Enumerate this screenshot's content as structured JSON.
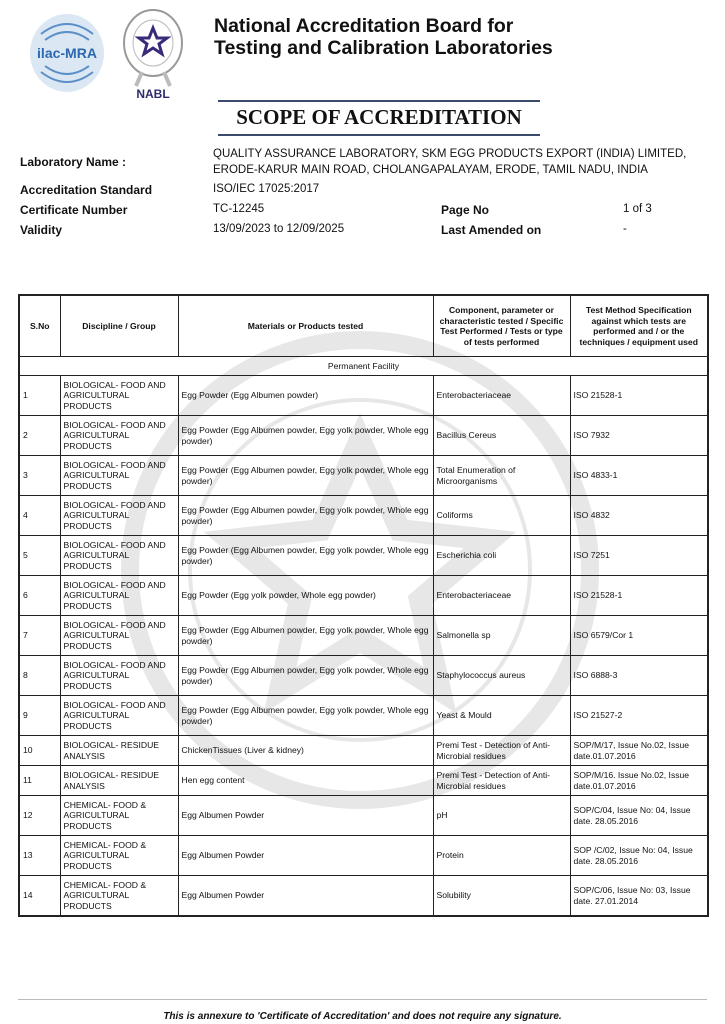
{
  "logos": {
    "ilac": "ilac-MRA",
    "nabl": "NABL"
  },
  "header": {
    "org_line1": "National Accreditation Board for",
    "org_line2": "Testing and Calibration Laboratories",
    "title": "SCOPE OF ACCREDITATION"
  },
  "info": {
    "lab_name_label": "Laboratory Name :",
    "lab_name_line1": "QUALITY ASSURANCE LABORATORY, SKM EGG PRODUCTS EXPORT (INDIA) LIMITED,",
    "lab_name_line2": "ERODE-KARUR MAIN ROAD, CHOLANGAPALAYAM, ERODE, TAMIL NADU, INDIA",
    "standard_label": "Accreditation Standard",
    "standard": "ISO/IEC 17025:2017",
    "cert_label": "Certificate Number",
    "cert": "TC-12245",
    "page_label": "Page No",
    "page": "1 of 3",
    "validity_label": "Validity",
    "validity": "13/09/2023 to 12/09/2025",
    "amended_label": "Last Amended on",
    "amended": "-"
  },
  "table": {
    "headers": [
      "S.No",
      "Discipline / Group",
      "Materials or Products tested",
      "Component, parameter or characteristic tested / Specific Test Performed / Tests or type of tests performed",
      "Test Method Specification against which tests are performed and / or the techniques / equipment used"
    ],
    "section": "Permanent Facility",
    "rows": [
      [
        "1",
        "BIOLOGICAL- FOOD AND AGRICULTURAL PRODUCTS",
        "Egg Powder (Egg Albumen powder)",
        "Enterobacteriaceae",
        "ISO 21528-1"
      ],
      [
        "2",
        "BIOLOGICAL- FOOD AND AGRICULTURAL PRODUCTS",
        "Egg Powder (Egg Albumen powder, Egg yolk powder, Whole egg powder)",
        "Bacillus Cereus",
        "ISO 7932"
      ],
      [
        "3",
        "BIOLOGICAL- FOOD AND AGRICULTURAL PRODUCTS",
        "Egg Powder (Egg Albumen powder, Egg yolk powder, Whole egg powder)",
        "Total Enumeration of Microorganisms",
        "ISO 4833-1"
      ],
      [
        "4",
        "BIOLOGICAL- FOOD AND AGRICULTURAL PRODUCTS",
        "Egg Powder (Egg Albumen powder, Egg yolk powder, Whole egg powder)",
        "Coliforms",
        "ISO 4832"
      ],
      [
        "5",
        "BIOLOGICAL- FOOD AND AGRICULTURAL PRODUCTS",
        "Egg Powder (Egg Albumen powder, Egg yolk powder, Whole egg powder)",
        "Escherichia coli",
        "ISO 7251"
      ],
      [
        "6",
        "BIOLOGICAL- FOOD AND AGRICULTURAL PRODUCTS",
        "Egg Powder (Egg yolk powder, Whole egg powder)",
        "Enterobacteriaceae",
        "ISO 21528-1"
      ],
      [
        "7",
        "BIOLOGICAL- FOOD AND AGRICULTURAL PRODUCTS",
        "Egg Powder (Egg Albumen powder, Egg yolk powder, Whole egg powder)",
        "Salmonella sp",
        "ISO 6579/Cor 1"
      ],
      [
        "8",
        "BIOLOGICAL- FOOD AND AGRICULTURAL PRODUCTS",
        "Egg Powder (Egg Albumen powder, Egg yolk powder, Whole egg powder)",
        "Staphylococcus aureus",
        "ISO 6888-3"
      ],
      [
        "9",
        "BIOLOGICAL- FOOD AND AGRICULTURAL PRODUCTS",
        "Egg Powder (Egg Albumen powder, Egg yolk powder, Whole egg powder)",
        "Yeast & Mould",
        "ISO 21527-2"
      ],
      [
        "10",
        "BIOLOGICAL- RESIDUE ANALYSIS",
        "ChickenTissues (Liver & kidney)",
        "Premi Test - Detection of Anti-Microbial residues",
        "SOP/M/17, Issue No.02, Issue date.01.07.2016"
      ],
      [
        "11",
        "BIOLOGICAL- RESIDUE ANALYSIS",
        "Hen egg content",
        "Premi Test - Detection of Anti-Microbial residues",
        "SOP/M/16. Issue No.02, Issue date.01.07.2016"
      ],
      [
        "12",
        "CHEMICAL- FOOD & AGRICULTURAL PRODUCTS",
        "Egg Albumen Powder",
        "pH",
        "SOP/C/04, Issue No: 04, Issue date. 28.05.2016"
      ],
      [
        "13",
        "CHEMICAL- FOOD & AGRICULTURAL PRODUCTS",
        "Egg Albumen Powder",
        "Protein",
        "SOP /C/02, Issue No: 04, Issue date. 28.05.2016"
      ],
      [
        "14",
        "CHEMICAL- FOOD & AGRICULTURAL PRODUCTS",
        "Egg Albumen Powder",
        "Solubility",
        "SOP/C/06, Issue No: 03, Issue date. 27.01.2014"
      ]
    ]
  },
  "footer": "This is annexure to 'Certificate of Accreditation' and does not require any signature."
}
